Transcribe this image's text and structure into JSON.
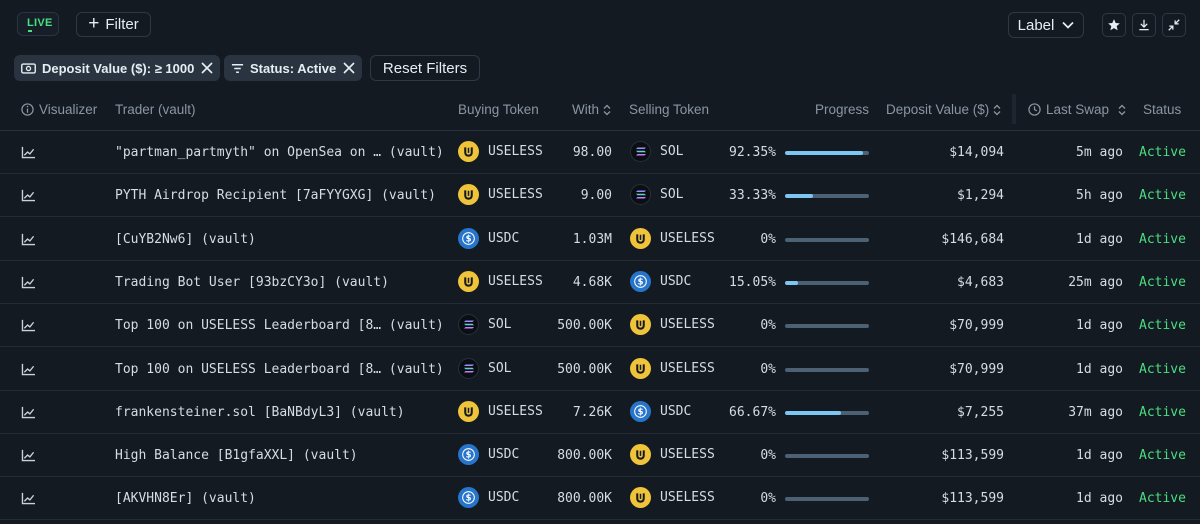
{
  "header": {
    "live_label": "LIVE",
    "filter_label": "Filter",
    "label_dropdown": "Label"
  },
  "active_filters": [
    {
      "label": "Deposit Value ($): ≥ 1000"
    },
    {
      "label": "Status: Active"
    }
  ],
  "reset_label": "Reset Filters",
  "columns": {
    "visualizer": "Visualizer",
    "trader": "Trader (vault)",
    "buying": "Buying Token",
    "with": "With",
    "selling": "Selling Token",
    "progress": "Progress",
    "deposit": "Deposit Value ($)",
    "last_swap": "Last Swap",
    "status": "Status"
  },
  "colors": {
    "accent_green": "#4ade80",
    "bar_fill": "#7cc6f2",
    "useless": "#f0c43a",
    "usdc": "#2775ca"
  },
  "rows": [
    {
      "trader": "\"partman_partmyth\" on OpenSea on … (vault)",
      "buy": "USELESS",
      "buy_icon": "useless",
      "with": "98.00",
      "sell": "SOL",
      "sell_icon": "sol",
      "progress": "92.35%",
      "progress_value": 92.35,
      "deposit": "$14,094",
      "last_swap": "5m ago",
      "status": "Active"
    },
    {
      "trader": "PYTH Airdrop Recipient [7aFYYGXG] (vault)",
      "buy": "USELESS",
      "buy_icon": "useless",
      "with": "9.00",
      "sell": "SOL",
      "sell_icon": "sol",
      "progress": "33.33%",
      "progress_value": 33.33,
      "deposit": "$1,294",
      "last_swap": "5h ago",
      "status": "Active"
    },
    {
      "trader": "[CuYB2Nw6] (vault)",
      "buy": "USDC",
      "buy_icon": "usdc",
      "with": "1.03M",
      "sell": "USELESS",
      "sell_icon": "useless",
      "progress": "0%",
      "progress_value": 0,
      "deposit": "$146,684",
      "last_swap": "1d ago",
      "status": "Active"
    },
    {
      "trader": "Trading Bot User [93bzCY3o] (vault)",
      "buy": "USELESS",
      "buy_icon": "useless",
      "with": "4.68K",
      "sell": "USDC",
      "sell_icon": "usdc",
      "progress": "15.05%",
      "progress_value": 15.05,
      "deposit": "$4,683",
      "last_swap": "25m ago",
      "status": "Active"
    },
    {
      "trader": "Top 100 on USELESS Leaderboard [8… (vault)",
      "buy": "SOL",
      "buy_icon": "sol",
      "with": "500.00K",
      "sell": "USELESS",
      "sell_icon": "useless",
      "progress": "0%",
      "progress_value": 0,
      "deposit": "$70,999",
      "last_swap": "1d ago",
      "status": "Active"
    },
    {
      "trader": "Top 100 on USELESS Leaderboard [8… (vault)",
      "buy": "SOL",
      "buy_icon": "sol",
      "with": "500.00K",
      "sell": "USELESS",
      "sell_icon": "useless",
      "progress": "0%",
      "progress_value": 0,
      "deposit": "$70,999",
      "last_swap": "1d ago",
      "status": "Active"
    },
    {
      "trader": "frankensteiner.sol [BaNBdyL3] (vault)",
      "buy": "USELESS",
      "buy_icon": "useless",
      "with": "7.26K",
      "sell": "USDC",
      "sell_icon": "usdc",
      "progress": "66.67%",
      "progress_value": 66.67,
      "deposit": "$7,255",
      "last_swap": "37m ago",
      "status": "Active"
    },
    {
      "trader": "High Balance [B1gfaXXL] (vault)",
      "buy": "USDC",
      "buy_icon": "usdc",
      "with": "800.00K",
      "sell": "USELESS",
      "sell_icon": "useless",
      "progress": "0%",
      "progress_value": 0,
      "deposit": "$113,599",
      "last_swap": "1d ago",
      "status": "Active"
    },
    {
      "trader": "[AKVHN8Er] (vault)",
      "buy": "USDC",
      "buy_icon": "usdc",
      "with": "800.00K",
      "sell": "USELESS",
      "sell_icon": "useless",
      "progress": "0%",
      "progress_value": 0,
      "deposit": "$113,599",
      "last_swap": "1d ago",
      "status": "Active"
    }
  ]
}
